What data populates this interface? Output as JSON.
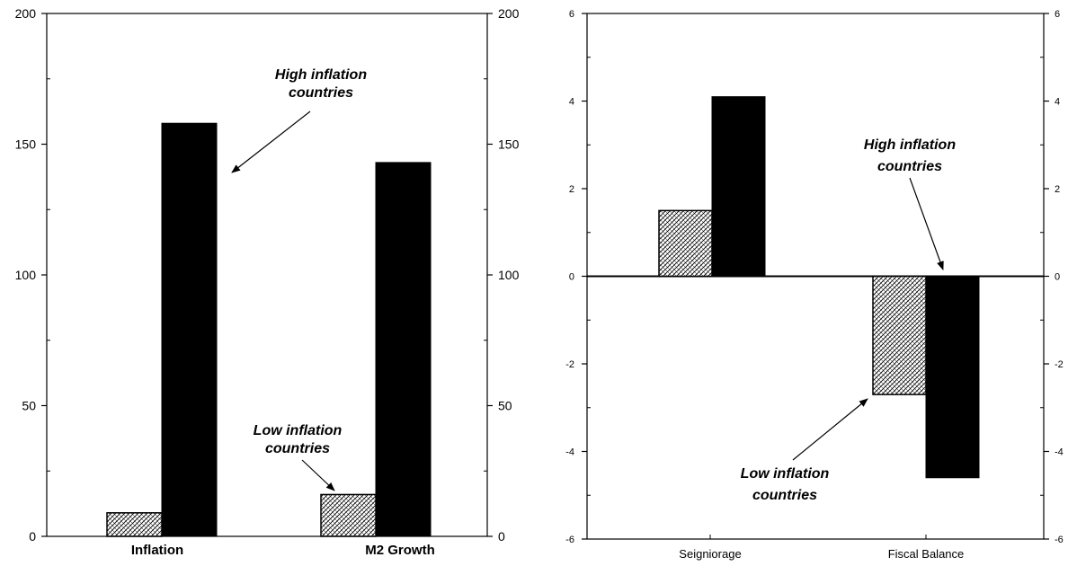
{
  "colors": {
    "high": "#000000",
    "low_pattern": "#000000",
    "axis": "#000000",
    "background": "#ffffff"
  },
  "chart_data": [
    {
      "type": "bar",
      "title": "",
      "xlabel": "",
      "ylabel": "",
      "ylim": [
        0,
        200
      ],
      "y_ticks": [
        "0",
        "50",
        "100",
        "150",
        "200"
      ],
      "categories": [
        "Inflation",
        "M2 Growth"
      ],
      "series": [
        {
          "name": "Low inflation countries",
          "values": [
            9,
            16
          ]
        },
        {
          "name": "High inflation countries",
          "values": [
            158,
            143
          ]
        }
      ],
      "annotations": [
        {
          "text_lines": [
            "High inflation",
            "countries"
          ]
        },
        {
          "text_lines": [
            "Low inflation",
            "countries"
          ]
        }
      ],
      "grid": false,
      "mirrored_right_axis": true
    },
    {
      "type": "bar",
      "title": "",
      "xlabel": "",
      "ylabel": "",
      "ylim": [
        -6,
        6
      ],
      "y_ticks": [
        "6",
        "4",
        "2",
        "0",
        "-2",
        "-4",
        "-6"
      ],
      "categories": [
        "Seigniorage",
        "Fiscal Balance"
      ],
      "series": [
        {
          "name": "Low inflation countries",
          "values": [
            1.5,
            -2.7
          ]
        },
        {
          "name": "High inflation countries",
          "values": [
            4.1,
            -4.6
          ]
        }
      ],
      "annotations": [
        {
          "text_lines": [
            "High inflation",
            "countries"
          ]
        },
        {
          "text_lines": [
            "Low inflation",
            "countries"
          ]
        }
      ],
      "grid": false,
      "mirrored_right_axis": true
    }
  ]
}
